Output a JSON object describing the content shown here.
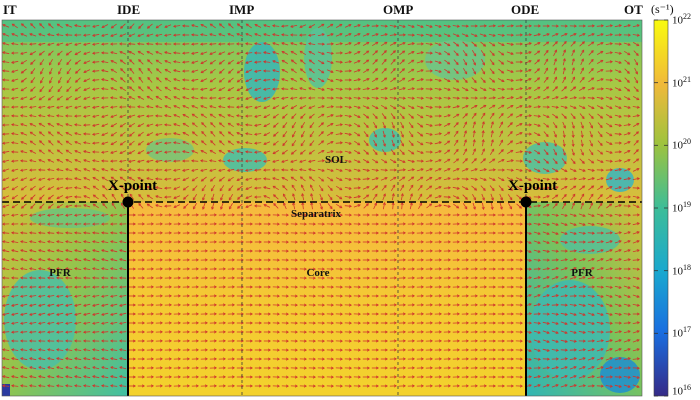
{
  "top_labels": [
    "IT",
    "IDE",
    "IMP",
    "OMP",
    "ODE",
    "OT"
  ],
  "colorbar": {
    "unit": "(s⁻¹)",
    "ticks": [
      {
        "base": "10",
        "exp": "22"
      },
      {
        "base": "10",
        "exp": "21"
      },
      {
        "base": "10",
        "exp": "20"
      },
      {
        "base": "10",
        "exp": "19"
      },
      {
        "base": "10",
        "exp": "18"
      },
      {
        "base": "10",
        "exp": "17"
      },
      {
        "base": "10",
        "exp": "16"
      }
    ],
    "scale": "log",
    "range": [
      "1e16",
      "1e22"
    ],
    "colormap": "parula"
  },
  "regions": {
    "sol": "SOL",
    "separatrix": "Separatrix",
    "core": "Core",
    "pfr_left": "PFR",
    "pfr_right": "PFR"
  },
  "xpoints": {
    "left": "X-point",
    "right": "X-point"
  },
  "colors": {
    "core_fill": "#f5c236",
    "sol_fill": "#9ccc4a",
    "edge_fill": "#4cc0a0",
    "arrow": "#d0342c",
    "separatrix_line": "#000000"
  }
}
